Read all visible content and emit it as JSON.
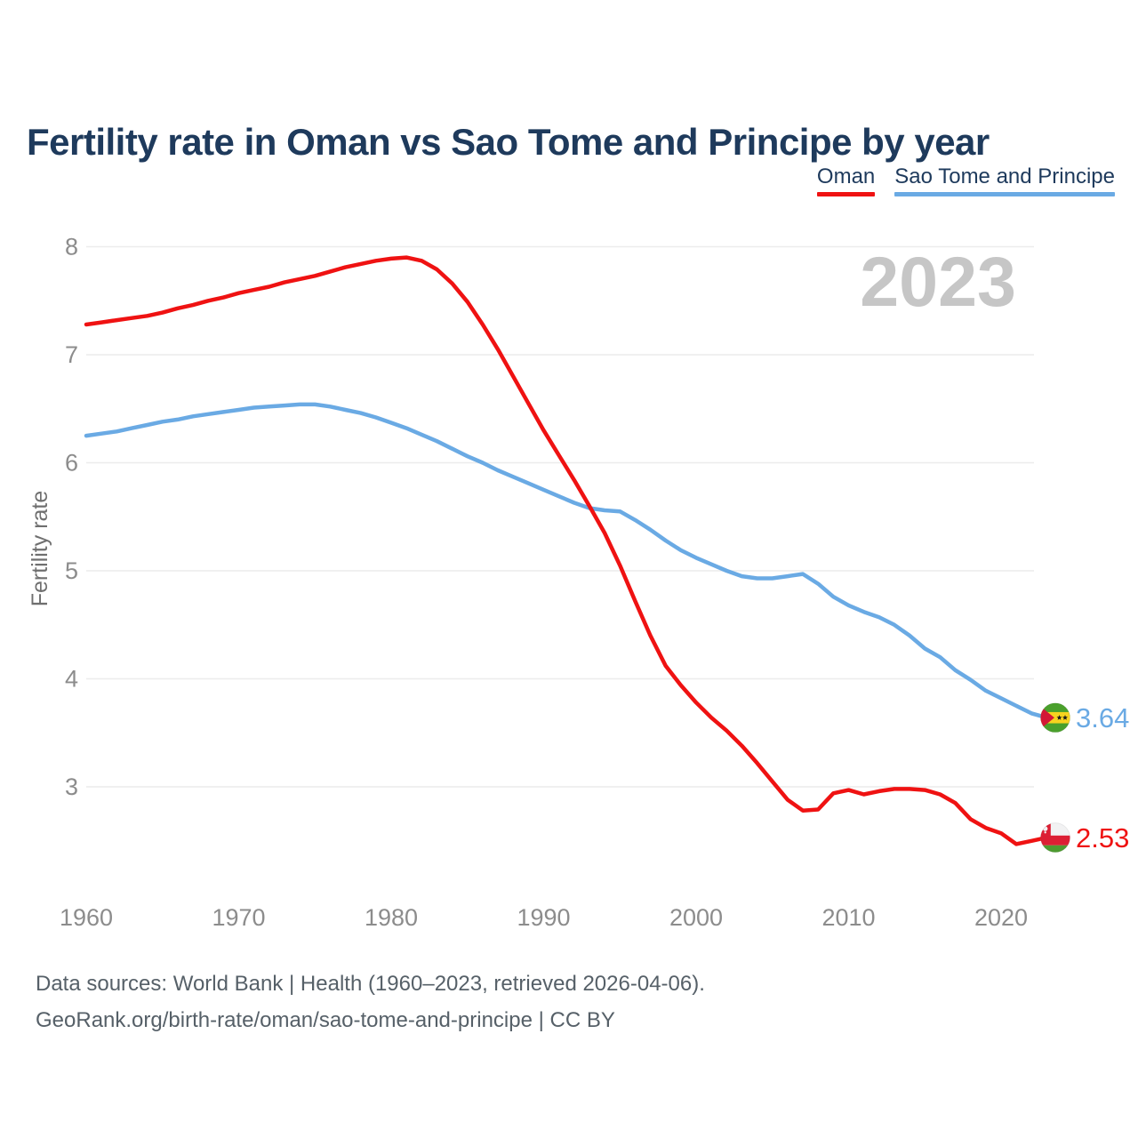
{
  "title": "Fertility rate in Oman vs Sao Tome and Principe by year",
  "legend": [
    {
      "label": "Oman",
      "color": "#ef1212"
    },
    {
      "label": "Sao Tome and Principe",
      "color": "#6aaae4"
    }
  ],
  "footer": {
    "line1": "Data sources: World Bank | Health (1960–2023, retrieved 2026-04-06).",
    "line2": "GeoRank.org/birth-rate/oman/sao-tome-and-principe | CC BY"
  },
  "colors": {
    "title_text": "#1e3a5c",
    "axis_text": "#8c8c8c",
    "gridline": "#ececec",
    "watermark": "#c6c6c6",
    "footer_text": "#566068",
    "oman_line": "#ef1212",
    "sao_tome_line": "#6aaae4"
  },
  "flags": {
    "oman": {
      "white": "#f2f2f3",
      "red": "#dc1f34",
      "green": "#4d9b30"
    },
    "sao_tome_and_principe": {
      "green": "#4aa02c",
      "yellow": "#f7d31f",
      "red": "#d31736",
      "star_black": "#1c1c1c"
    }
  },
  "chart_data": {
    "type": "line",
    "title": "Fertility rate in Oman vs Sao Tome and Principe by year",
    "xlabel": "",
    "ylabel": "Fertility rate",
    "watermark": "2023",
    "grid": "horizontal",
    "legend_position": "top-right",
    "x_range": [
      1960,
      2023
    ],
    "ylim": [
      2.2,
      8.2
    ],
    "yticks": [
      3,
      4,
      5,
      6,
      7,
      8
    ],
    "xticks": [
      1960,
      1970,
      1980,
      1990,
      2000,
      2010,
      2020
    ],
    "x": [
      1960,
      1961,
      1962,
      1963,
      1964,
      1965,
      1966,
      1967,
      1968,
      1969,
      1970,
      1971,
      1972,
      1973,
      1974,
      1975,
      1976,
      1977,
      1978,
      1979,
      1980,
      1981,
      1982,
      1983,
      1984,
      1985,
      1986,
      1987,
      1988,
      1989,
      1990,
      1991,
      1992,
      1993,
      1994,
      1995,
      1996,
      1997,
      1998,
      1999,
      2000,
      2001,
      2002,
      2003,
      2004,
      2005,
      2006,
      2007,
      2008,
      2009,
      2010,
      2011,
      2012,
      2013,
      2014,
      2015,
      2016,
      2017,
      2018,
      2019,
      2020,
      2021,
      2022,
      2023
    ],
    "series": [
      {
        "name": "Oman",
        "color": "#ef1212",
        "flag": "oman",
        "end_label": "2.53",
        "values": [
          7.28,
          7.3,
          7.32,
          7.34,
          7.36,
          7.39,
          7.43,
          7.46,
          7.5,
          7.53,
          7.57,
          7.6,
          7.63,
          7.67,
          7.7,
          7.73,
          7.77,
          7.81,
          7.84,
          7.87,
          7.89,
          7.9,
          7.87,
          7.79,
          7.66,
          7.49,
          7.28,
          7.05,
          6.8,
          6.55,
          6.3,
          6.07,
          5.84,
          5.6,
          5.35,
          5.05,
          4.72,
          4.4,
          4.12,
          3.94,
          3.78,
          3.64,
          3.52,
          3.38,
          3.22,
          3.05,
          2.88,
          2.78,
          2.79,
          2.94,
          2.97,
          2.93,
          2.96,
          2.98,
          2.98,
          2.97,
          2.93,
          2.85,
          2.7,
          2.62,
          2.57,
          2.47,
          2.5,
          2.53
        ]
      },
      {
        "name": "Sao Tome and Principe",
        "color": "#6aaae4",
        "flag": "sao_tome_and_principe",
        "end_label": "3.64",
        "values": [
          6.25,
          6.27,
          6.29,
          6.32,
          6.35,
          6.38,
          6.4,
          6.43,
          6.45,
          6.47,
          6.49,
          6.51,
          6.52,
          6.53,
          6.54,
          6.54,
          6.52,
          6.49,
          6.46,
          6.42,
          6.37,
          6.32,
          6.26,
          6.2,
          6.13,
          6.06,
          6.0,
          5.93,
          5.87,
          5.81,
          5.75,
          5.69,
          5.63,
          5.58,
          5.56,
          5.55,
          5.47,
          5.38,
          5.28,
          5.19,
          5.12,
          5.06,
          5.0,
          4.95,
          4.93,
          4.93,
          4.95,
          4.97,
          4.88,
          4.76,
          4.68,
          4.62,
          4.57,
          4.5,
          4.4,
          4.28,
          4.2,
          4.08,
          3.99,
          3.89,
          3.82,
          3.75,
          3.68,
          3.64
        ]
      }
    ]
  }
}
